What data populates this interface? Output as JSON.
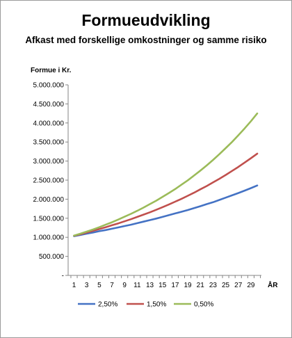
{
  "chart_data": {
    "type": "line",
    "title": "Formueudvikling",
    "subtitle": "Afkast med forskellige omkostninger og samme risiko",
    "ylabel": "Formue i Kr.",
    "xlabel": "ÅR",
    "ylim": [
      0,
      5000000
    ],
    "y_ticks": [
      0,
      500000,
      1000000,
      1500000,
      2000000,
      2500000,
      3000000,
      3500000,
      4000000,
      4500000,
      5000000
    ],
    "y_tick_labels": [
      "-",
      "500.000",
      "1.000.000",
      "1.500.000",
      "2.000.000",
      "2.500.000",
      "3.000.000",
      "3.500.000",
      "4.000.000",
      "4.500.000",
      "5.000.000"
    ],
    "x": [
      1,
      2,
      3,
      4,
      5,
      6,
      7,
      8,
      9,
      10,
      11,
      12,
      13,
      14,
      15,
      16,
      17,
      18,
      19,
      20,
      21,
      22,
      23,
      24,
      25,
      26,
      27,
      28,
      29,
      30
    ],
    "x_tick_labels": [
      "1",
      "3",
      "5",
      "7",
      "9",
      "11",
      "13",
      "15",
      "17",
      "19",
      "21",
      "23",
      "25",
      "27",
      "29"
    ],
    "legend_position": "bottom",
    "grid": false,
    "series": [
      {
        "name": "2,50%",
        "color": "#4472c4",
        "values": [
          1030000,
          1060000,
          1095000,
          1125000,
          1160000,
          1190000,
          1225000,
          1260000,
          1295000,
          1330000,
          1370000,
          1410000,
          1450000,
          1490000,
          1535000,
          1580000,
          1625000,
          1670000,
          1715000,
          1765000,
          1815000,
          1870000,
          1920000,
          1980000,
          2040000,
          2100000,
          2160000,
          2225000,
          2290000,
          2360000
        ]
      },
      {
        "name": "1,50%",
        "color": "#c0504d",
        "values": [
          1040000,
          1080000,
          1125000,
          1170000,
          1215000,
          1265000,
          1315000,
          1365000,
          1420000,
          1475000,
          1535000,
          1595000,
          1655000,
          1720000,
          1790000,
          1860000,
          1935000,
          2010000,
          2090000,
          2170000,
          2260000,
          2345000,
          2440000,
          2535000,
          2635000,
          2740000,
          2845000,
          2960000,
          3075000,
          3195000
        ]
      },
      {
        "name": "0,50%",
        "color": "#9bbb59",
        "values": [
          1045000,
          1095000,
          1150000,
          1205000,
          1265000,
          1330000,
          1395000,
          1465000,
          1540000,
          1615000,
          1695000,
          1780000,
          1870000,
          1960000,
          2060000,
          2160000,
          2265000,
          2380000,
          2495000,
          2620000,
          2750000,
          2885000,
          3030000,
          3180000,
          3340000,
          3500000,
          3675000,
          3855000,
          4045000,
          4250000
        ]
      }
    ]
  }
}
